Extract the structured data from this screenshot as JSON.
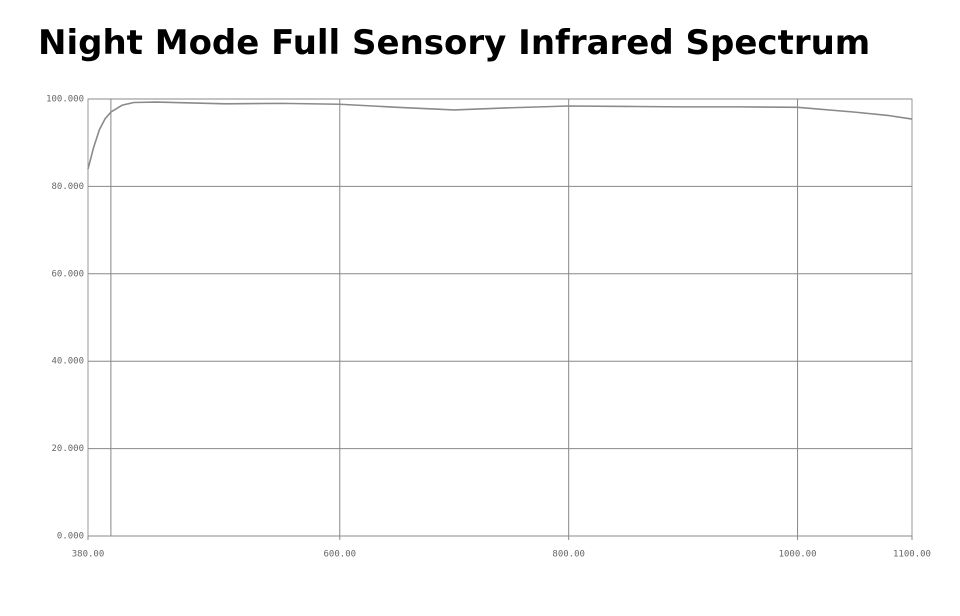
{
  "chart_data": {
    "type": "line",
    "title": "Night Mode Full Sensory Infrared Spectrum",
    "x": [
      380,
      385,
      390,
      395,
      400,
      410,
      420,
      440,
      470,
      500,
      550,
      600,
      650,
      700,
      750,
      800,
      850,
      900,
      950,
      1000,
      1050,
      1080,
      1100
    ],
    "series": [
      {
        "color": "#8a8a8a",
        "values": [
          84,
          89,
          93,
          95.5,
          97,
          98.6,
          99.2,
          99.3,
          99.1,
          98.9,
          99.0,
          98.8,
          98.1,
          97.5,
          98.0,
          98.4,
          98.3,
          98.2,
          98.2,
          98.1,
          97.0,
          96.2,
          95.4
        ]
      }
    ],
    "xlim": [
      380,
      1100
    ],
    "ylim": [
      0,
      100
    ],
    "xticks": [
      {
        "value": 380,
        "label": "380.00"
      },
      {
        "value": 600,
        "label": "600.00"
      },
      {
        "value": 800,
        "label": "800.00"
      },
      {
        "value": 1000,
        "label": "1000.00"
      },
      {
        "value": 1100,
        "label": "1100.00"
      }
    ],
    "xgrid": [
      400,
      600,
      800,
      1000
    ],
    "yticks": [
      {
        "value": 0,
        "label": "0.000"
      },
      {
        "value": 20,
        "label": "20.000"
      },
      {
        "value": 40,
        "label": "40.000"
      },
      {
        "value": 60,
        "label": "60.000"
      },
      {
        "value": 80,
        "label": "80.000"
      },
      {
        "value": 100,
        "label": "100.000"
      }
    ],
    "grid": true
  }
}
